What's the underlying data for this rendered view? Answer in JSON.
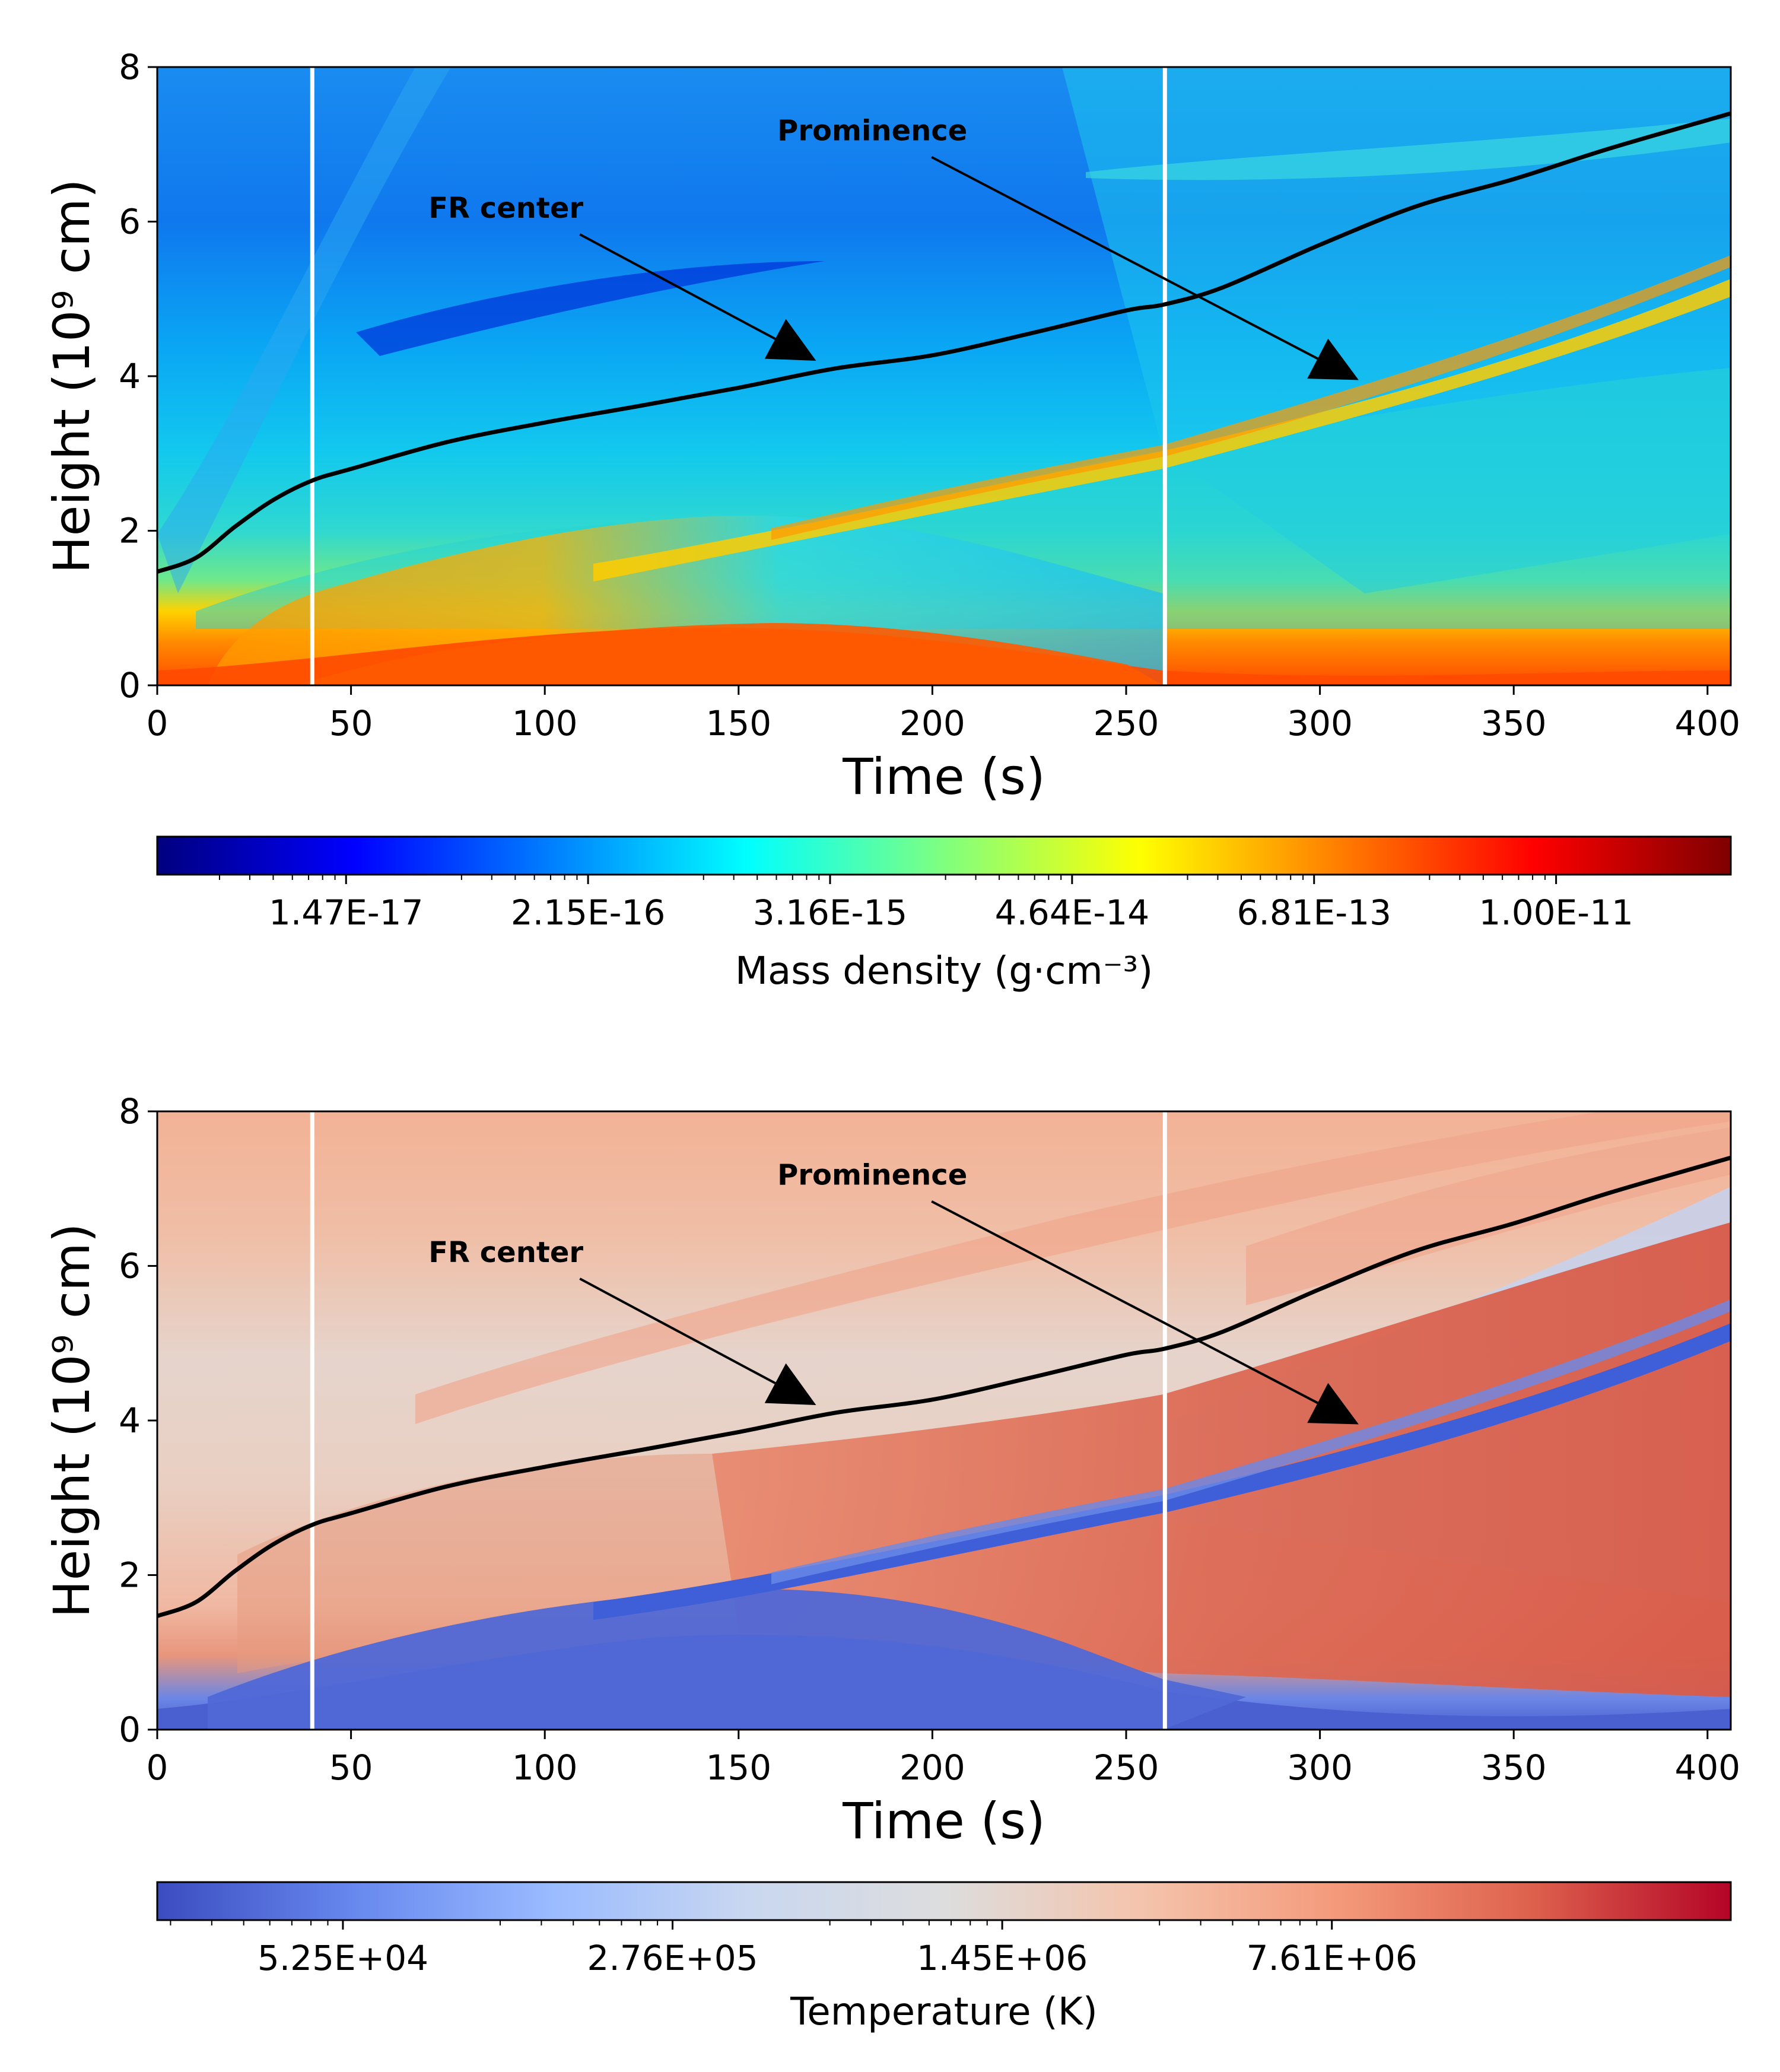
{
  "chart_data": [
    {
      "type": "heatmap",
      "xlabel": "Time (s)",
      "ylabel": "Height (10⁹ cm)",
      "xlim": [
        0,
        406
      ],
      "ylim": [
        0,
        8
      ],
      "xticks": [
        "0",
        "50",
        "100",
        "150",
        "200",
        "250",
        "300",
        "350",
        "400"
      ],
      "yticks": [
        "0",
        "2",
        "4",
        "6",
        "8"
      ],
      "colorbar": {
        "label": "Mass density (g·cm⁻³)",
        "ticks": [
          "1.47E-17",
          "2.15E-16",
          "3.16E-15",
          "4.64E-14",
          "6.81E-13",
          "1.00E-11"
        ],
        "colormap": "jet",
        "colors": [
          "#00007f",
          "#0000ff",
          "#007fff",
          "#00ffff",
          "#7fff7f",
          "#ffff00",
          "#ff7f00",
          "#ff0000",
          "#7f0000"
        ]
      },
      "vertical_lines_x": [
        40,
        260
      ],
      "annotations": [
        {
          "text": "FR center",
          "text_xy": [
            70,
            6.05
          ],
          "arrow_to": [
            170,
            4.2
          ]
        },
        {
          "text": "Prominence",
          "text_xy": [
            160,
            7.05
          ],
          "arrow_to": [
            310,
            3.95
          ]
        }
      ],
      "fr_center_curve": {
        "x": [
          0,
          10,
          20,
          30,
          40,
          50,
          75,
          100,
          125,
          150,
          175,
          200,
          225,
          250,
          260,
          275,
          300,
          325,
          350,
          375,
          406
        ],
        "y": [
          1.47,
          1.65,
          2.05,
          2.4,
          2.65,
          2.8,
          3.15,
          3.4,
          3.62,
          3.85,
          4.1,
          4.27,
          4.55,
          4.85,
          4.93,
          5.15,
          5.7,
          6.2,
          6.55,
          6.95,
          7.4
        ]
      }
    },
    {
      "type": "heatmap",
      "xlabel": "Time (s)",
      "ylabel": "Height (10⁹ cm)",
      "xlim": [
        0,
        406
      ],
      "ylim": [
        0,
        8
      ],
      "xticks": [
        "0",
        "50",
        "100",
        "150",
        "200",
        "250",
        "300",
        "350",
        "400"
      ],
      "yticks": [
        "0",
        "2",
        "4",
        "6",
        "8"
      ],
      "colorbar": {
        "label": "Temperature (K)",
        "ticks": [
          "5.25E+04",
          "2.76E+05",
          "1.45E+06",
          "7.61E+06"
        ],
        "colormap": "coolwarm",
        "colors": [
          "#3b4cc0",
          "#6788ee",
          "#9abbff",
          "#c9d7f0",
          "#dddddd",
          "#f4c4ac",
          "#f49a7b",
          "#dd604d",
          "#b40426"
        ]
      },
      "vertical_lines_x": [
        40,
        260
      ],
      "annotations": [
        {
          "text": "FR center",
          "text_xy": [
            70,
            6.05
          ],
          "arrow_to": [
            170,
            4.2
          ]
        },
        {
          "text": "Prominence",
          "text_xy": [
            160,
            7.05
          ],
          "arrow_to": [
            310,
            3.95
          ]
        }
      ],
      "fr_center_curve": {
        "x": [
          0,
          10,
          20,
          30,
          40,
          50,
          75,
          100,
          125,
          150,
          175,
          200,
          225,
          250,
          260,
          275,
          300,
          325,
          350,
          375,
          406
        ],
        "y": [
          1.47,
          1.65,
          2.05,
          2.4,
          2.65,
          2.8,
          3.15,
          3.4,
          3.62,
          3.85,
          4.1,
          4.27,
          4.55,
          4.85,
          4.93,
          5.15,
          5.7,
          6.2,
          6.55,
          6.95,
          7.4
        ]
      }
    }
  ]
}
